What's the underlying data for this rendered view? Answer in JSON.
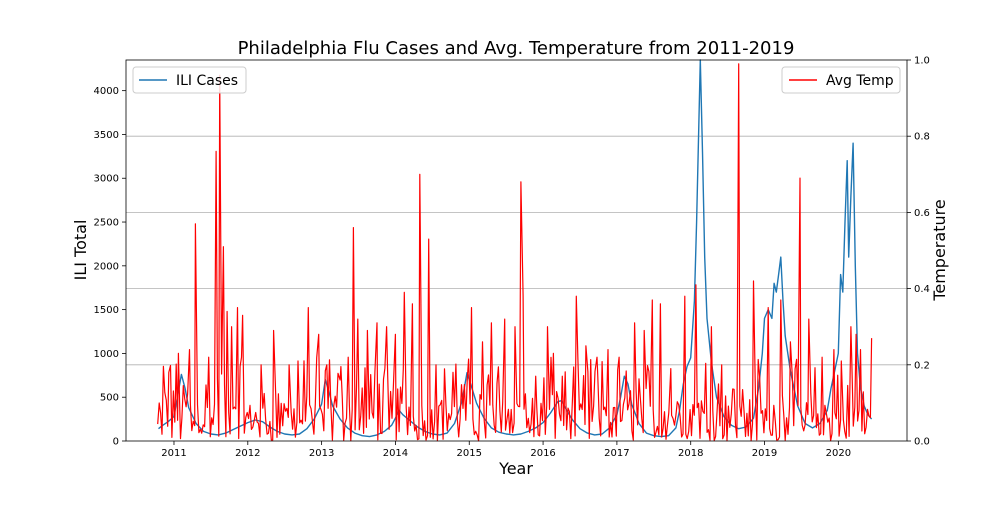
{
  "chart_data": {
    "type": "line",
    "title": "Philadelphia Flu Cases and Avg. Temperature from 2011-2019",
    "xlabel": "Year",
    "ylabel_left": "ILI Total",
    "ylabel_right": "Temperature",
    "x_ticks": [
      "2011",
      "2012",
      "2013",
      "2014",
      "2015",
      "2016",
      "2017",
      "2018",
      "2019",
      "2020"
    ],
    "x_range": [
      2010.35,
      2020.93
    ],
    "y_left_ticks": [
      0,
      500,
      1000,
      1500,
      2000,
      2500,
      3000,
      3500,
      4000
    ],
    "y_left_range": [
      0,
      4350
    ],
    "y_right_ticks": [
      "0.0",
      "0.2",
      "0.4",
      "0.6",
      "0.8",
      "1.0"
    ],
    "y_right_range": [
      0,
      1
    ],
    "grid": "horizontal lines at right-axis ticks",
    "series": [
      {
        "name": "ILI Cases",
        "axis": "left",
        "color": "#1f77b4",
        "legend_position": "upper-left",
        "points": [
          [
            2010.79,
            140
          ],
          [
            2010.85,
            180
          ],
          [
            2010.92,
            220
          ],
          [
            2011.0,
            280
          ],
          [
            2011.05,
            520
          ],
          [
            2011.1,
            760
          ],
          [
            2011.15,
            600
          ],
          [
            2011.2,
            380
          ],
          [
            2011.3,
            200
          ],
          [
            2011.4,
            110
          ],
          [
            2011.5,
            80
          ],
          [
            2011.6,
            70
          ],
          [
            2011.7,
            90
          ],
          [
            2011.8,
            130
          ],
          [
            2011.9,
            170
          ],
          [
            2012.0,
            210
          ],
          [
            2012.1,
            240
          ],
          [
            2012.2,
            220
          ],
          [
            2012.3,
            160
          ],
          [
            2012.4,
            110
          ],
          [
            2012.5,
            80
          ],
          [
            2012.6,
            70
          ],
          [
            2012.7,
            80
          ],
          [
            2012.8,
            140
          ],
          [
            2012.9,
            250
          ],
          [
            2013.0,
            420
          ],
          [
            2013.05,
            700
          ],
          [
            2013.1,
            560
          ],
          [
            2013.15,
            400
          ],
          [
            2013.25,
            250
          ],
          [
            2013.35,
            150
          ],
          [
            2013.45,
            90
          ],
          [
            2013.55,
            60
          ],
          [
            2013.65,
            50
          ],
          [
            2013.75,
            70
          ],
          [
            2013.85,
            110
          ],
          [
            2013.95,
            180
          ],
          [
            2014.0,
            260
          ],
          [
            2014.05,
            350
          ],
          [
            2014.1,
            300
          ],
          [
            2014.2,
            230
          ],
          [
            2014.3,
            160
          ],
          [
            2014.4,
            110
          ],
          [
            2014.5,
            80
          ],
          [
            2014.6,
            70
          ],
          [
            2014.7,
            90
          ],
          [
            2014.8,
            200
          ],
          [
            2014.9,
            450
          ],
          [
            2014.97,
            780
          ],
          [
            2015.02,
            650
          ],
          [
            2015.1,
            430
          ],
          [
            2015.2,
            260
          ],
          [
            2015.3,
            150
          ],
          [
            2015.4,
            100
          ],
          [
            2015.5,
            80
          ],
          [
            2015.6,
            70
          ],
          [
            2015.7,
            80
          ],
          [
            2015.8,
            110
          ],
          [
            2015.9,
            150
          ],
          [
            2016.0,
            210
          ],
          [
            2016.1,
            320
          ],
          [
            2016.2,
            450
          ],
          [
            2016.25,
            460
          ],
          [
            2016.3,
            380
          ],
          [
            2016.4,
            240
          ],
          [
            2016.5,
            140
          ],
          [
            2016.6,
            90
          ],
          [
            2016.7,
            70
          ],
          [
            2016.8,
            80
          ],
          [
            2016.9,
            150
          ],
          [
            2017.0,
            300
          ],
          [
            2017.05,
            500
          ],
          [
            2017.1,
            740
          ],
          [
            2017.15,
            650
          ],
          [
            2017.2,
            420
          ],
          [
            2017.3,
            200
          ],
          [
            2017.4,
            90
          ],
          [
            2017.5,
            60
          ],
          [
            2017.6,
            50
          ],
          [
            2017.7,
            60
          ],
          [
            2017.8,
            150
          ],
          [
            2017.85,
            350
          ],
          [
            2017.9,
            650
          ],
          [
            2017.95,
            850
          ],
          [
            2018.0,
            950
          ],
          [
            2018.05,
            1600
          ],
          [
            2018.08,
            2500
          ],
          [
            2018.11,
            3600
          ],
          [
            2018.13,
            4350
          ],
          [
            2018.16,
            3300
          ],
          [
            2018.19,
            2100
          ],
          [
            2018.22,
            1400
          ],
          [
            2018.28,
            900
          ],
          [
            2018.35,
            500
          ],
          [
            2018.45,
            280
          ],
          [
            2018.55,
            180
          ],
          [
            2018.65,
            140
          ],
          [
            2018.75,
            160
          ],
          [
            2018.85,
            260
          ],
          [
            2018.92,
            600
          ],
          [
            2018.97,
            1000
          ],
          [
            2019.0,
            1400
          ],
          [
            2019.05,
            1500
          ],
          [
            2019.1,
            1400
          ],
          [
            2019.13,
            1800
          ],
          [
            2019.16,
            1700
          ],
          [
            2019.19,
            1900
          ],
          [
            2019.22,
            2100
          ],
          [
            2019.25,
            1600
          ],
          [
            2019.28,
            1200
          ],
          [
            2019.35,
            800
          ],
          [
            2019.45,
            400
          ],
          [
            2019.55,
            200
          ],
          [
            2019.65,
            150
          ],
          [
            2019.75,
            200
          ],
          [
            2019.85,
            350
          ],
          [
            2019.9,
            600
          ],
          [
            2019.95,
            800
          ],
          [
            2020.0,
            1000
          ],
          [
            2020.03,
            1900
          ],
          [
            2020.06,
            1700
          ],
          [
            2020.09,
            2500
          ],
          [
            2020.12,
            3200
          ],
          [
            2020.14,
            2100
          ],
          [
            2020.17,
            2800
          ],
          [
            2020.2,
            3400
          ],
          [
            2020.23,
            2000
          ],
          [
            2020.26,
            1000
          ],
          [
            2020.3,
            600
          ],
          [
            2020.35,
            400
          ],
          [
            2020.4,
            300
          ],
          [
            2020.45,
            250
          ]
        ]
      },
      {
        "name": "Avg Temp",
        "axis": "right",
        "color": "#ff0000",
        "legend_position": "upper-right",
        "peaks": [
          [
            2010.93,
            0.18
          ],
          [
            2011.06,
            0.23
          ],
          [
            2011.21,
            0.24
          ],
          [
            2011.29,
            0.57
          ],
          [
            2011.47,
            0.22
          ],
          [
            2011.57,
            0.76
          ],
          [
            2011.62,
            0.96
          ],
          [
            2011.67,
            0.51
          ],
          [
            2011.72,
            0.34
          ],
          [
            2011.78,
            0.3
          ],
          [
            2011.86,
            0.35
          ],
          [
            2011.93,
            0.33
          ],
          [
            2012.18,
            0.2
          ],
          [
            2012.35,
            0.29
          ],
          [
            2012.56,
            0.2
          ],
          [
            2012.68,
            0.21
          ],
          [
            2012.82,
            0.35
          ],
          [
            2012.96,
            0.28
          ],
          [
            2013.07,
            0.2
          ],
          [
            2013.25,
            0.16
          ],
          [
            2013.36,
            0.22
          ],
          [
            2013.43,
            0.56
          ],
          [
            2013.49,
            0.32
          ],
          [
            2013.62,
            0.29
          ],
          [
            2013.75,
            0.31
          ],
          [
            2013.88,
            0.3
          ],
          [
            2014.0,
            0.28
          ],
          [
            2014.12,
            0.39
          ],
          [
            2014.23,
            0.36
          ],
          [
            2014.33,
            0.7
          ],
          [
            2014.45,
            0.53
          ],
          [
            2014.55,
            0.2
          ],
          [
            2014.78,
            0.18
          ],
          [
            2015.03,
            0.35
          ],
          [
            2015.18,
            0.26
          ],
          [
            2015.3,
            0.31
          ],
          [
            2015.48,
            0.32
          ],
          [
            2015.62,
            0.3
          ],
          [
            2015.7,
            0.68
          ],
          [
            2015.73,
            0.38
          ],
          [
            2015.9,
            0.17
          ],
          [
            2016.06,
            0.3
          ],
          [
            2016.14,
            0.23
          ],
          [
            2016.26,
            0.17
          ],
          [
            2016.45,
            0.38
          ],
          [
            2016.58,
            0.25
          ],
          [
            2016.73,
            0.22
          ],
          [
            2016.88,
            0.24
          ],
          [
            2017.03,
            0.22
          ],
          [
            2017.24,
            0.31
          ],
          [
            2017.37,
            0.29
          ],
          [
            2017.48,
            0.37
          ],
          [
            2017.59,
            0.36
          ],
          [
            2017.73,
            0.19
          ],
          [
            2017.92,
            0.38
          ],
          [
            2018.07,
            0.41
          ],
          [
            2018.28,
            0.3
          ],
          [
            2018.42,
            0.2
          ],
          [
            2018.65,
            0.99
          ],
          [
            2018.85,
            0.42
          ],
          [
            2019.05,
            0.35
          ],
          [
            2019.22,
            0.37
          ],
          [
            2019.35,
            0.26
          ],
          [
            2019.48,
            0.69
          ],
          [
            2019.6,
            0.32
          ],
          [
            2019.78,
            0.22
          ],
          [
            2019.94,
            0.24
          ],
          [
            2020.04,
            0.21
          ],
          [
            2020.17,
            0.3
          ],
          [
            2020.24,
            0.28
          ],
          [
            2020.3,
            0.24
          ],
          [
            2020.45,
            0.27
          ]
        ]
      }
    ]
  }
}
